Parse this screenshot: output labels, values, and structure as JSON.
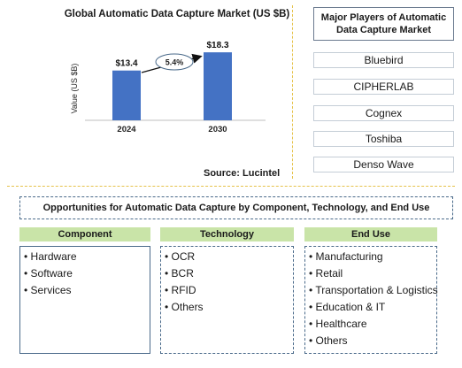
{
  "chart_data": {
    "type": "bar",
    "title": "Global Automatic Data Capture Market (US $B)",
    "categories": [
      "2024",
      "2030"
    ],
    "values": [
      13.4,
      18.3
    ],
    "value_labels": [
      "$13.4",
      "$18.3"
    ],
    "ylabel": "Value (US $B)",
    "xlabel": "",
    "growth_annotation": "5.4%",
    "bar_color": "#4472c4",
    "ylim": [
      0,
      20
    ],
    "grid": false
  },
  "source": "Source: Lucintel",
  "players": {
    "title": "Major Players of Automatic Data Capture Market",
    "items": [
      "Bluebird",
      "CIPHERLAB",
      "Cognex",
      "Toshiba",
      "Denso Wave"
    ]
  },
  "opportunities": {
    "title": "Opportunities for Automatic Data Capture by Component, Technology, and End Use",
    "header_color": "#c9e4a8",
    "columns": [
      {
        "title": "Component",
        "items": [
          "Hardware",
          "Software",
          "Services"
        ]
      },
      {
        "title": "Technology",
        "items": [
          "OCR",
          "BCR",
          "RFID",
          "Others"
        ]
      },
      {
        "title": "End Use",
        "items": [
          "Manufacturing",
          "Retail",
          "Transportation & Logistics",
          "Education & IT",
          "Healthcare",
          "Others"
        ]
      }
    ]
  }
}
